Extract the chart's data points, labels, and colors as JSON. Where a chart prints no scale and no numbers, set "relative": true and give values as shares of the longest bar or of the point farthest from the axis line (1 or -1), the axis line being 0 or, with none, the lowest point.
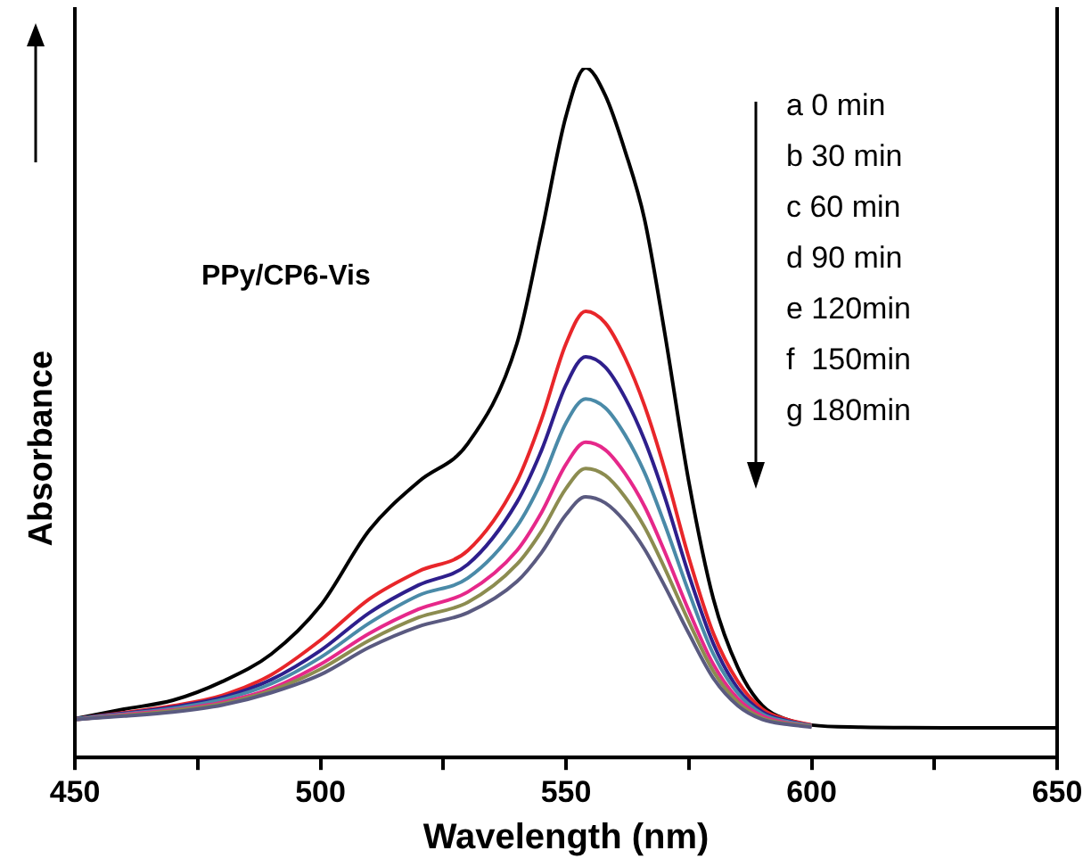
{
  "chart_data": {
    "type": "line",
    "xlabel": "Wavelength (nm)",
    "ylabel": "Absorbance",
    "relative": true,
    "xlim": [
      450,
      650
    ],
    "xticks": [
      450,
      {
        "value": 475,
        "label": null
      },
      500,
      {
        "value": 525,
        "label": null
      },
      550,
      {
        "value": 575,
        "label": null
      },
      600,
      {
        "value": 625,
        "label": null
      },
      650
    ],
    "marker": "none",
    "x": [
      450,
      460,
      470,
      480,
      490,
      500,
      510,
      520,
      530,
      540,
      545,
      550,
      554,
      558,
      562,
      566,
      570,
      575,
      580,
      585,
      590,
      595,
      600,
      610,
      630,
      650
    ],
    "annotations": [
      "PPy/CP6-Vis",
      "a 0 min",
      "b 30 min",
      "c 60 min",
      "d 90 min",
      "e 120min",
      "f  150min",
      "g 180min"
    ],
    "series": [
      {
        "color": "#000000",
        "values": [
          0.056,
          0.07,
          0.083,
          0.11,
          0.15,
          0.22,
          0.33,
          0.4,
          0.455,
          0.6,
          0.76,
          0.93,
          1.0,
          0.96,
          0.88,
          0.78,
          0.62,
          0.4,
          0.23,
          0.13,
          0.075,
          0.055,
          0.047,
          0.044,
          0.043,
          0.043
        ]
      },
      {
        "color": "#e8262a",
        "values": [
          0.056,
          0.065,
          0.075,
          0.09,
          0.12,
          0.17,
          0.23,
          0.27,
          0.3,
          0.4,
          0.49,
          0.6,
          0.647,
          0.63,
          0.58,
          0.51,
          0.42,
          0.29,
          0.18,
          0.11,
          0.07,
          0.055,
          0.047,
          null,
          null,
          null
        ]
      },
      {
        "color": "#2e1f8c",
        "values": [
          0.056,
          0.064,
          0.073,
          0.087,
          0.113,
          0.155,
          0.21,
          0.25,
          0.28,
          0.37,
          0.445,
          0.54,
          0.581,
          0.566,
          0.522,
          0.46,
          0.38,
          0.265,
          0.165,
          0.1,
          0.066,
          0.053,
          0.046,
          null,
          null,
          null
        ]
      },
      {
        "color": "#4a8aa8",
        "values": [
          0.056,
          0.063,
          0.071,
          0.084,
          0.107,
          0.145,
          0.195,
          0.235,
          0.26,
          0.335,
          0.4,
          0.485,
          0.52,
          0.507,
          0.468,
          0.413,
          0.34,
          0.24,
          0.15,
          0.093,
          0.063,
          0.052,
          0.046,
          null,
          null,
          null
        ]
      },
      {
        "color": "#e6288a",
        "values": [
          0.055,
          0.062,
          0.069,
          0.08,
          0.1,
          0.135,
          0.18,
          0.215,
          0.24,
          0.3,
          0.355,
          0.425,
          0.457,
          0.446,
          0.412,
          0.364,
          0.3,
          0.213,
          0.135,
          0.085,
          0.06,
          0.05,
          0.045,
          null,
          null,
          null
        ]
      },
      {
        "color": "#8c8c50",
        "values": [
          0.055,
          0.061,
          0.068,
          0.078,
          0.097,
          0.128,
          0.17,
          0.203,
          0.225,
          0.28,
          0.328,
          0.39,
          0.419,
          0.409,
          0.378,
          0.334,
          0.276,
          0.197,
          0.125,
          0.08,
          0.057,
          0.049,
          0.045,
          null,
          null,
          null
        ]
      },
      {
        "color": "#5a5a80",
        "values": [
          0.055,
          0.06,
          0.066,
          0.076,
          0.094,
          0.12,
          0.16,
          0.19,
          0.21,
          0.255,
          0.297,
          0.352,
          0.378,
          0.369,
          0.342,
          0.302,
          0.25,
          0.18,
          0.115,
          0.075,
          0.055,
          0.048,
          0.044,
          null,
          null,
          null
        ]
      }
    ]
  }
}
